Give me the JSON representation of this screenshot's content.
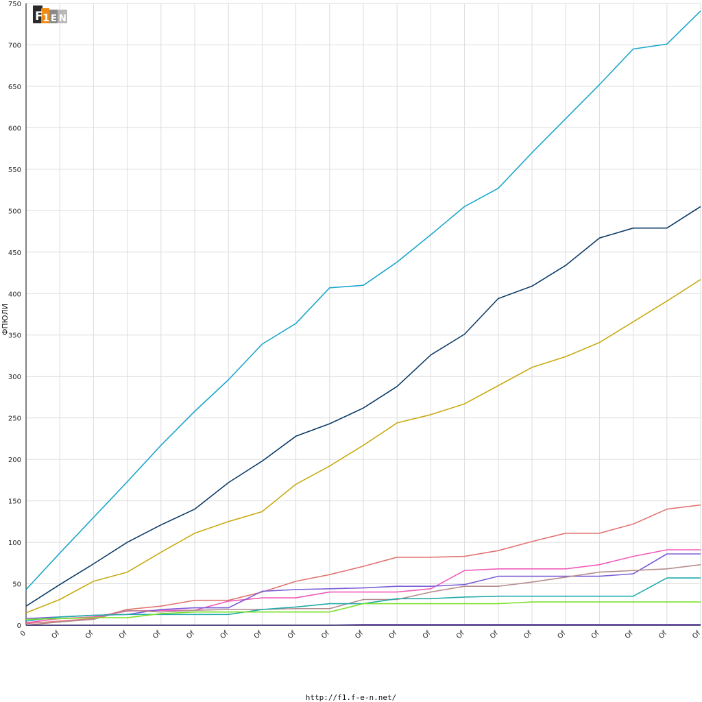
{
  "logo": {
    "alt": "F1EN",
    "letters": [
      "F",
      "1",
      "E",
      "N"
    ]
  },
  "footer": {
    "url": "http://f1.f-e-n.net/"
  },
  "chart_data": {
    "type": "line",
    "title": "",
    "ylabel": "ФПЮЛИ",
    "xlabel": "",
    "ylim": [
      0,
      750
    ],
    "yticks": [
      0,
      50,
      100,
      150,
      200,
      250,
      300,
      350,
      400,
      450,
      500,
      550,
      600,
      650,
      700,
      750
    ],
    "categories": [
      "0",
      "Of",
      "Of",
      "Of",
      "Of",
      "Of",
      "Of",
      "Of",
      "Of",
      "Of",
      "Of",
      "Of",
      "Of",
      "Of",
      "Of",
      "Of",
      "Of",
      "Of",
      "Of",
      "Of",
      "Of"
    ],
    "grid": true,
    "legend": "none",
    "series": [
      {
        "color": "#1aa6cc",
        "values": [
          43,
          87,
          130,
          173,
          217,
          258,
          296,
          339,
          364,
          407,
          410,
          438,
          471,
          505,
          527,
          570,
          611,
          652,
          695,
          701,
          741
        ]
      },
      {
        "color": "#0b3a66",
        "values": [
          23,
          49,
          74,
          100,
          121,
          140,
          172,
          198,
          228,
          243,
          262,
          288,
          326,
          351,
          394,
          409,
          434,
          467,
          479,
          479,
          505
        ]
      },
      {
        "color": "#c8aa10",
        "values": [
          15,
          31,
          53,
          64,
          88,
          111,
          125,
          137,
          170,
          192,
          217,
          244,
          254,
          267,
          289,
          311,
          324,
          341,
          366,
          391,
          417
        ]
      },
      {
        "color": "#e07470",
        "values": [
          2,
          5,
          8,
          19,
          23,
          30,
          30,
          40,
          53,
          61,
          71,
          82,
          82,
          83,
          90,
          101,
          111,
          111,
          122,
          140,
          145
        ]
      },
      {
        "color": "#f05aba",
        "values": [
          3,
          8,
          10,
          17,
          18,
          18,
          29,
          33,
          33,
          40,
          40,
          40,
          44,
          66,
          68,
          68,
          68,
          73,
          83,
          91,
          91
        ]
      },
      {
        "color": "#7a5ed8",
        "values": [
          8,
          10,
          12,
          13,
          19,
          21,
          21,
          41,
          43,
          44,
          45,
          47,
          47,
          49,
          59,
          59,
          59,
          59,
          62,
          86,
          86
        ]
      },
      {
        "color": "#b48c8c",
        "values": [
          0,
          4,
          7,
          18,
          16,
          18,
          19,
          19,
          20,
          20,
          31,
          31,
          40,
          47,
          47,
          52,
          58,
          64,
          66,
          68,
          73
        ]
      },
      {
        "color": "#20aaaa",
        "values": [
          5,
          10,
          12,
          13,
          13,
          13,
          13,
          19,
          22,
          26,
          26,
          32,
          32,
          34,
          35,
          35,
          35,
          35,
          35,
          57,
          57
        ]
      },
      {
        "color": "#7ae028",
        "values": [
          7,
          8,
          9,
          9,
          14,
          16,
          16,
          16,
          16,
          16,
          26,
          26,
          26,
          26,
          26,
          28,
          28,
          28,
          28,
          28,
          28
        ]
      },
      {
        "color": "#9060c8",
        "values": [
          0,
          0,
          0,
          0,
          0,
          0,
          0,
          0,
          0,
          0,
          1,
          1,
          1,
          1,
          1,
          1,
          1,
          1,
          1,
          1,
          1
        ]
      },
      {
        "color": "#2a2a60",
        "values": [
          0,
          0,
          0,
          0,
          0,
          0,
          0,
          0,
          0,
          0,
          0,
          0,
          0,
          0,
          0,
          0,
          0,
          0,
          0,
          0,
          0
        ]
      }
    ]
  }
}
